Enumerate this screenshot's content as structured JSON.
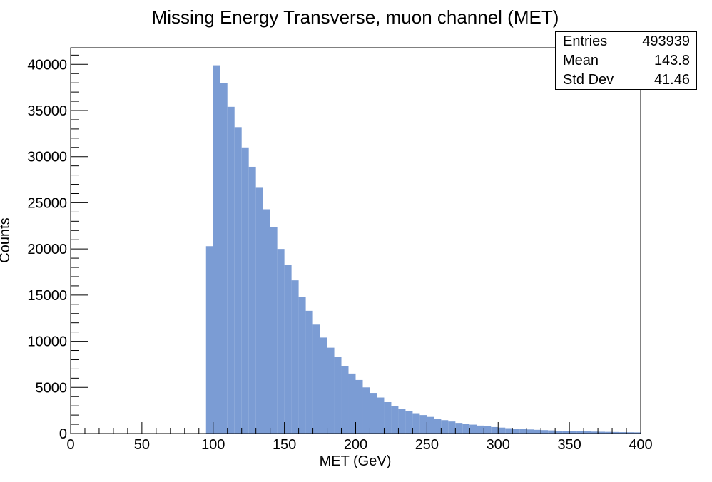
{
  "chart_data": {
    "type": "histogram",
    "title": "Missing Energy Transverse, muon channel (MET)",
    "xlabel": "MET (GeV)",
    "ylabel": "Counts",
    "xlim": [
      0,
      400
    ],
    "ylim": [
      0,
      41800
    ],
    "bin_width": 5,
    "bin_edges_start": 95,
    "counts": [
      20300,
      39900,
      38000,
      35400,
      33200,
      31000,
      28900,
      26700,
      24300,
      22400,
      20000,
      18300,
      16600,
      14800,
      13300,
      11800,
      10400,
      9300,
      8300,
      7300,
      6500,
      5800,
      5000,
      4400,
      3900,
      3400,
      3000,
      2700,
      2400,
      2200,
      2000,
      1800,
      1600,
      1450,
      1300,
      1150,
      1050,
      960,
      860,
      780,
      700,
      640,
      580,
      530,
      480,
      440,
      400,
      370,
      340,
      310,
      290,
      270,
      250,
      230,
      210,
      195,
      180,
      165,
      150,
      140,
      130
    ],
    "x_ticks": [
      "0",
      "50",
      "100",
      "150",
      "200",
      "250",
      "300",
      "350",
      "400"
    ],
    "y_ticks": [
      "0",
      "5000",
      "10000",
      "15000",
      "20000",
      "25000",
      "30000",
      "35000",
      "40000"
    ],
    "fill_color": "#7b9cd4",
    "grid": false,
    "stats": [
      {
        "label": "Entries",
        "value": "493939"
      },
      {
        "label": "Mean",
        "value": "143.8"
      },
      {
        "label": "Std Dev",
        "value": "41.46"
      }
    ]
  }
}
